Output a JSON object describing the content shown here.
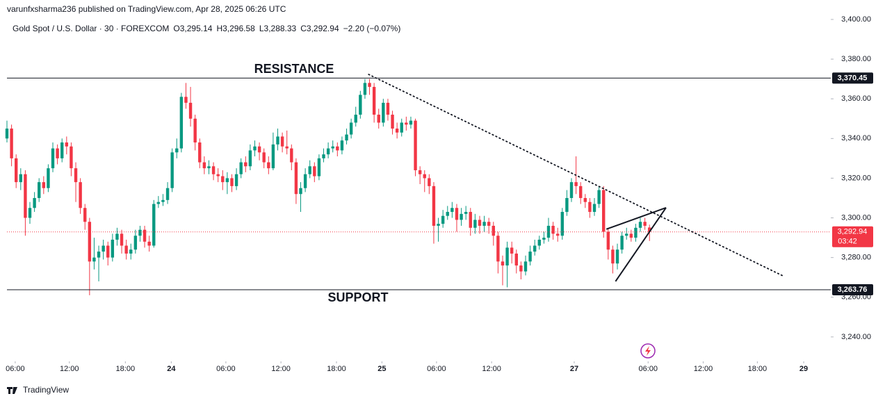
{
  "chart_data": {
    "type": "candlestick",
    "publisher": "varunfxsharma236 published on TradingView.com, Apr 28, 2025 06:26 UTC",
    "symbol": "Gold Spot / U.S. Dollar · 30 · FOREXCOM",
    "ohlc_header": [
      "O3,295.14",
      "H3,296.58",
      "L3,288.33",
      "C3,292.94",
      "−2.20 (−0.07%)"
    ],
    "brand": "TradingView",
    "up_color": "#089981",
    "down_color": "#f23645",
    "open": [
      3340,
      3345,
      3330,
      3318,
      3322,
      3300,
      3305,
      3310,
      3318,
      3315,
      3325,
      3335,
      3330,
      3338,
      3336,
      3325,
      3318,
      3305,
      3298,
      3278,
      3280,
      3283,
      3286,
      3280,
      3289,
      3292,
      3286,
      3282,
      3284,
      3291,
      3294,
      3288,
      3286,
      3307,
      3308,
      3309,
      3315,
      3333,
      3335,
      3361,
      3358,
      3350,
      3338,
      3328,
      3325,
      3326,
      3322,
      3321,
      3318,
      3320,
      3316,
      3322,
      3328,
      3326,
      3334,
      3336,
      3333,
      3328,
      3325,
      3337,
      3341,
      3336,
      3335,
      3328,
      3312,
      3315,
      3322,
      3326,
      3321,
      3330,
      3332,
      3335,
      3336,
      3334,
      3339,
      3342,
      3348,
      3352,
      3362,
      3368,
      3366,
      3352,
      3348,
      3358,
      3352,
      3345,
      3343,
      3348,
      3347,
      3349,
      3324,
      3322,
      3320,
      3316,
      3296,
      3297,
      3301,
      3303,
      3305,
      3299,
      3302,
      3303,
      3295,
      3299,
      3296,
      3298,
      3296,
      3291,
      3278,
      3276,
      3285,
      3282,
      3276,
      3273,
      3278,
      3283,
      3286,
      3289,
      3290,
      3296,
      3292,
      3291,
      3303,
      3310,
      3318,
      3316,
      3310,
      3308,
      3303,
      3307,
      3314,
      3293,
      3284,
      3277,
      3284,
      3291,
      3292,
      3290,
      3295,
      3298,
      3295.14
    ],
    "high": [
      3349,
      3347,
      3332,
      3325,
      3324,
      3308,
      3313,
      3320,
      3321,
      3327,
      3338,
      3337,
      3340,
      3341,
      3338,
      3328,
      3320,
      3307,
      3300,
      3290,
      3286,
      3289,
      3288,
      3292,
      3295,
      3294,
      3289,
      3287,
      3294,
      3296,
      3296,
      3291,
      3309,
      3311,
      3312,
      3318,
      3335,
      3340,
      3363,
      3368,
      3366,
      3352,
      3340,
      3331,
      3329,
      3328,
      3325,
      3324,
      3323,
      3322,
      3325,
      3330,
      3331,
      3337,
      3339,
      3338,
      3335,
      3331,
      3343,
      3345,
      3343,
      3344,
      3337,
      3330,
      3318,
      3325,
      3329,
      3328,
      3332,
      3335,
      3338,
      3339,
      3338,
      3341,
      3345,
      3350,
      3356,
      3364,
      3370,
      3370,
      3368,
      3355,
      3360,
      3360,
      3354,
      3348,
      3350,
      3351,
      3351,
      3350,
      3326,
      3324,
      3322,
      3318,
      3300,
      3304,
      3306,
      3308,
      3307,
      3305,
      3306,
      3305,
      3302,
      3301,
      3301,
      3300,
      3298,
      3293,
      3281,
      3288,
      3288,
      3284,
      3278,
      3281,
      3286,
      3289,
      3291,
      3293,
      3300,
      3298,
      3295,
      3305,
      3314,
      3320,
      3331,
      3318,
      3312,
      3310,
      3310,
      3316,
      3316,
      3295,
      3286,
      3287,
      3293,
      3295,
      3294,
      3297,
      3300,
      3300,
      3296.58
    ],
    "low": [
      3338,
      3326,
      3315,
      3314,
      3291,
      3297,
      3303,
      3308,
      3312,
      3313,
      3323,
      3327,
      3328,
      3332,
      3321,
      3308,
      3302,
      3294,
      3261,
      3274,
      3268,
      3279,
      3276,
      3278,
      3286,
      3282,
      3279,
      3279,
      3282,
      3288,
      3285,
      3283,
      3285,
      3305,
      3306,
      3307,
      3313,
      3330,
      3333,
      3355,
      3346,
      3334,
      3325,
      3322,
      3322,
      3319,
      3318,
      3314,
      3312,
      3313,
      3314,
      3320,
      3323,
      3324,
      3331,
      3329,
      3325,
      3322,
      3324,
      3334,
      3333,
      3332,
      3324,
      3307,
      3303,
      3313,
      3320,
      3318,
      3319,
      3328,
      3330,
      3333,
      3331,
      3332,
      3337,
      3340,
      3346,
      3350,
      3360,
      3362,
      3348,
      3345,
      3346,
      3349,
      3342,
      3340,
      3341,
      3344,
      3345,
      3321,
      3317,
      3313,
      3312,
      3287,
      3288,
      3295,
      3299,
      3300,
      3293,
      3296,
      3299,
      3291,
      3292,
      3292,
      3293,
      3292,
      3286,
      3272,
      3266,
      3265,
      3277,
      3272,
      3269,
      3271,
      3276,
      3281,
      3284,
      3287,
      3288,
      3289,
      3288,
      3289,
      3301,
      3308,
      3312,
      3307,
      3305,
      3300,
      3301,
      3305,
      3290,
      3279,
      3272,
      3274,
      3282,
      3289,
      3288,
      3288,
      3293,
      3294,
      3288.33
    ],
    "close": [
      3345,
      3330,
      3318,
      3322,
      3300,
      3305,
      3310,
      3318,
      3315,
      3325,
      3335,
      3330,
      3338,
      3336,
      3325,
      3318,
      3305,
      3298,
      3278,
      3280,
      3283,
      3286,
      3280,
      3289,
      3292,
      3286,
      3282,
      3284,
      3291,
      3294,
      3288,
      3286,
      3307,
      3308,
      3309,
      3315,
      3333,
      3335,
      3361,
      3358,
      3350,
      3338,
      3328,
      3325,
      3326,
      3322,
      3321,
      3318,
      3320,
      3316,
      3322,
      3328,
      3326,
      3334,
      3336,
      3333,
      3328,
      3325,
      3337,
      3341,
      3336,
      3335,
      3328,
      3312,
      3315,
      3322,
      3326,
      3321,
      3330,
      3332,
      3335,
      3336,
      3334,
      3339,
      3342,
      3348,
      3352,
      3362,
      3368,
      3366,
      3352,
      3348,
      3358,
      3352,
      3345,
      3343,
      3348,
      3347,
      3349,
      3324,
      3322,
      3320,
      3316,
      3296,
      3297,
      3301,
      3303,
      3305,
      3299,
      3302,
      3303,
      3295,
      3299,
      3296,
      3298,
      3296,
      3291,
      3278,
      3276,
      3285,
      3282,
      3276,
      3273,
      3278,
      3283,
      3286,
      3289,
      3290,
      3296,
      3292,
      3291,
      3303,
      3310,
      3318,
      3316,
      3310,
      3308,
      3303,
      3307,
      3314,
      3293,
      3284,
      3277,
      3284,
      3291,
      3292,
      3290,
      3295,
      3298,
      3296,
      3292.94
    ],
    "xlim": [
      0,
      179.5
    ],
    "xticks": [
      {
        "value": 1.8,
        "label": "06:00"
      },
      {
        "value": 13.6,
        "label": "12:00"
      },
      {
        "value": 25.8,
        "label": "18:00"
      },
      {
        "value": 35.8,
        "label": "24"
      },
      {
        "value": 47.7,
        "label": "06:00"
      },
      {
        "value": 59.7,
        "label": "12:00"
      },
      {
        "value": 71.8,
        "label": "18:00"
      },
      {
        "value": 81.7,
        "label": "25"
      },
      {
        "value": 93.6,
        "label": "06:00"
      },
      {
        "value": 105.6,
        "label": "12:00"
      },
      {
        "value": 123.6,
        "label": "27"
      },
      {
        "value": 139.7,
        "label": "06:00"
      },
      {
        "value": 151.7,
        "label": "12:00"
      },
      {
        "value": 163.5,
        "label": "18:00"
      },
      {
        "value": 173.6,
        "label": "29"
      }
    ],
    "ylim": [
      3227.7,
      3409.8
    ],
    "yticks": [
      {
        "value": 3240,
        "label": "3,240.00"
      },
      {
        "value": 3260,
        "label": "3,260.00"
      },
      {
        "value": 3280,
        "label": "3,280.00"
      },
      {
        "value": 3300,
        "label": "3,300.00"
      },
      {
        "value": 3320,
        "label": "3,320.00"
      },
      {
        "value": 3340,
        "label": "3,340.00"
      },
      {
        "value": 3360,
        "label": "3,360.00"
      },
      {
        "value": 3380,
        "label": "3,380.00"
      },
      {
        "value": 3400,
        "label": "3,400.00"
      }
    ],
    "levels": [
      {
        "name": "RESISTANCE",
        "value": 3370.45,
        "value_label": "3,370.45"
      },
      {
        "name": "SUPPORT",
        "value": 3263.76,
        "value_label": "3,263.76"
      }
    ],
    "last_price": {
      "value": 3292.94,
      "label": "3,292.94",
      "countdown": "03:42"
    },
    "trendline": {
      "x": [
        78.8,
        169.4
      ],
      "y": [
        3372.3,
        3270.4
      ]
    },
    "wedge": [
      {
        "x": [
          130.6,
          143.6
        ],
        "y": [
          3294.3,
          3305.1
        ]
      },
      {
        "x": [
          132.6,
          143.6
        ],
        "y": [
          3268.0,
          3305.1
        ]
      }
    ]
  }
}
